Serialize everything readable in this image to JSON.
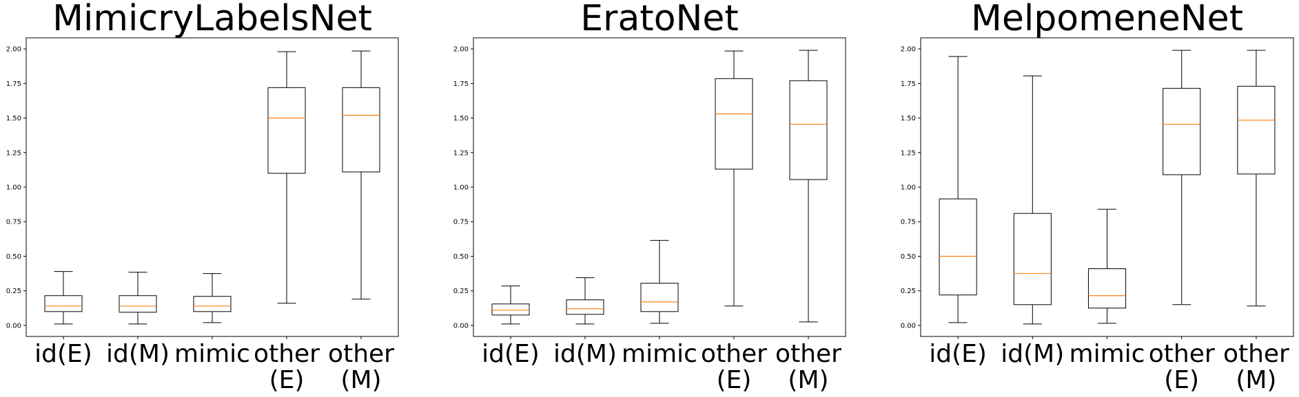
{
  "chart_data": [
    {
      "type": "box",
      "title": "MimicryLabelsNet",
      "categories": [
        "id(E)",
        "id(M)",
        "mimic",
        "other\n(E)",
        "other\n(M)"
      ],
      "ylim": [
        -0.08,
        2.08
      ],
      "yticks": [
        "0.00",
        "0.25",
        "0.50",
        "0.75",
        "1.00",
        "1.25",
        "1.50",
        "1.75",
        "2.00"
      ],
      "grid": false,
      "boxes": [
        {
          "whisker_low": 0.01,
          "q1": 0.1,
          "median": 0.14,
          "q3": 0.215,
          "whisker_high": 0.39
        },
        {
          "whisker_low": 0.01,
          "q1": 0.095,
          "median": 0.14,
          "q3": 0.215,
          "whisker_high": 0.385
        },
        {
          "whisker_low": 0.02,
          "q1": 0.1,
          "median": 0.14,
          "q3": 0.21,
          "whisker_high": 0.375
        },
        {
          "whisker_low": 0.16,
          "q1": 1.1,
          "median": 1.5,
          "q3": 1.72,
          "whisker_high": 1.98
        },
        {
          "whisker_low": 0.19,
          "q1": 1.11,
          "median": 1.52,
          "q3": 1.72,
          "whisker_high": 1.985
        }
      ]
    },
    {
      "type": "box",
      "title": "EratoNet",
      "categories": [
        "id(E)",
        "id(M)",
        "mimic",
        "other\n(E)",
        "other\n(M)"
      ],
      "ylim": [
        -0.08,
        2.08
      ],
      "yticks": [
        "0.00",
        "0.25",
        "0.50",
        "0.75",
        "1.00",
        "1.25",
        "1.50",
        "1.75",
        "2.00"
      ],
      "grid": false,
      "boxes": [
        {
          "whisker_low": 0.01,
          "q1": 0.075,
          "median": 0.11,
          "q3": 0.155,
          "whisker_high": 0.285
        },
        {
          "whisker_low": 0.01,
          "q1": 0.08,
          "median": 0.12,
          "q3": 0.185,
          "whisker_high": 0.345
        },
        {
          "whisker_low": 0.015,
          "q1": 0.1,
          "median": 0.17,
          "q3": 0.305,
          "whisker_high": 0.615
        },
        {
          "whisker_low": 0.14,
          "q1": 1.13,
          "median": 1.53,
          "q3": 1.785,
          "whisker_high": 1.985
        },
        {
          "whisker_low": 0.025,
          "q1": 1.055,
          "median": 1.455,
          "q3": 1.77,
          "whisker_high": 1.99
        }
      ]
    },
    {
      "type": "box",
      "title": "MelpomeneNet",
      "categories": [
        "id(E)",
        "id(M)",
        "mimic",
        "other\n(E)",
        "other\n(M)"
      ],
      "ylim": [
        -0.08,
        2.08
      ],
      "yticks": [
        "0.00",
        "0.25",
        "0.50",
        "0.75",
        "1.00",
        "1.25",
        "1.50",
        "1.75",
        "2.00"
      ],
      "grid": false,
      "boxes": [
        {
          "whisker_low": 0.02,
          "q1": 0.22,
          "median": 0.5,
          "q3": 0.915,
          "whisker_high": 1.945
        },
        {
          "whisker_low": 0.01,
          "q1": 0.15,
          "median": 0.375,
          "q3": 0.81,
          "whisker_high": 1.805
        },
        {
          "whisker_low": 0.015,
          "q1": 0.125,
          "median": 0.215,
          "q3": 0.41,
          "whisker_high": 0.84
        },
        {
          "whisker_low": 0.15,
          "q1": 1.09,
          "median": 1.455,
          "q3": 1.715,
          "whisker_high": 1.99
        },
        {
          "whisker_low": 0.14,
          "q1": 1.095,
          "median": 1.485,
          "q3": 1.73,
          "whisker_high": 1.99
        }
      ]
    }
  ]
}
